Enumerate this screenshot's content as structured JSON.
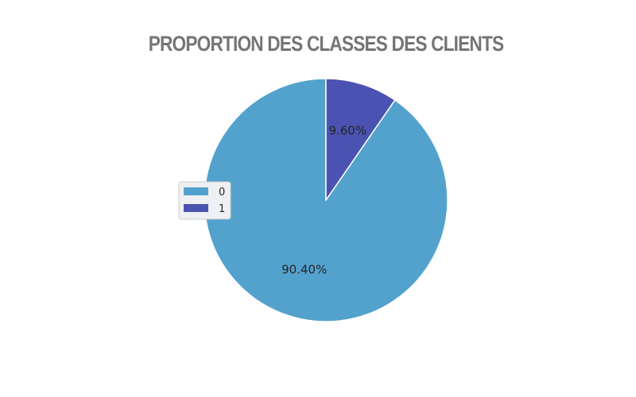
{
  "chart_data": {
    "type": "pie",
    "title": "PROPORTION DES CLASSES DES CLIENTS",
    "categories": [
      "0",
      "1"
    ],
    "values": [
      90.4,
      9.6
    ],
    "labels": [
      "90.40%",
      "9.60%"
    ],
    "colors": [
      "#53a2cd",
      "#4a53b1"
    ],
    "legend": {
      "entries": [
        "0",
        "1"
      ],
      "placement": "center-left"
    }
  }
}
